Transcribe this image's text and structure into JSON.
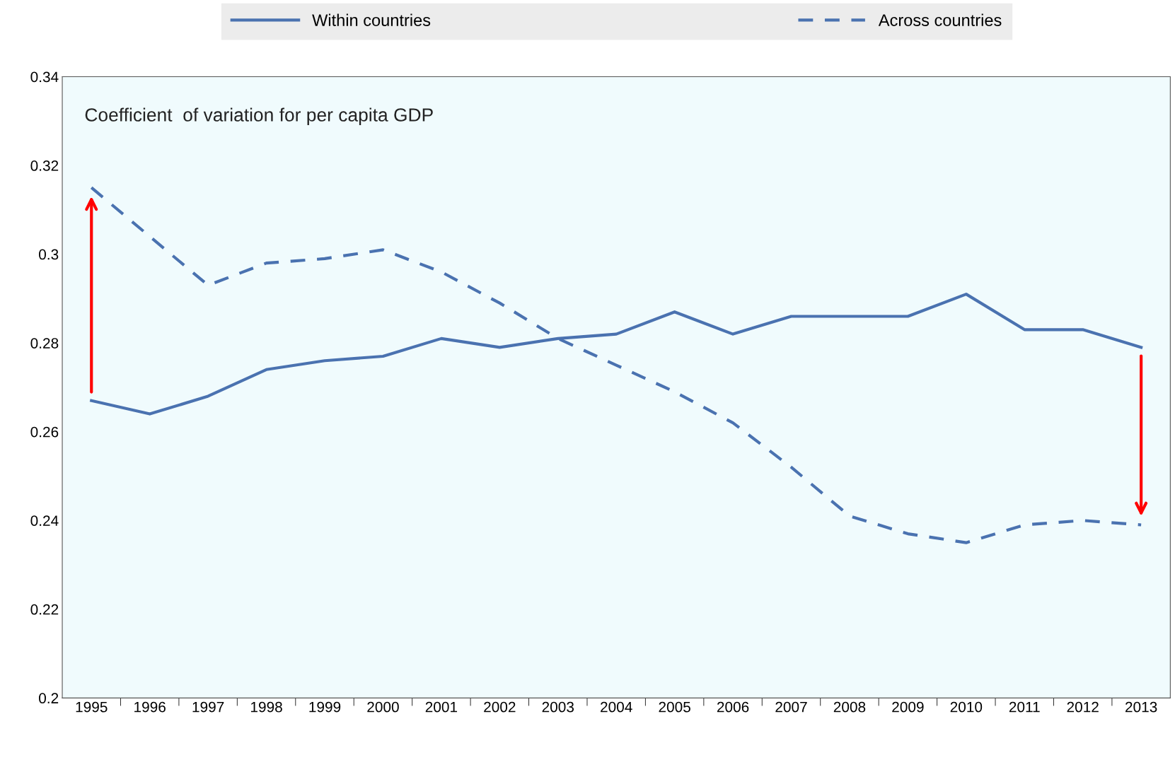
{
  "chart_data": {
    "type": "line",
    "categories": [
      "1995",
      "1996",
      "1997",
      "1998",
      "1999",
      "2000",
      "2001",
      "2002",
      "2003",
      "2004",
      "2005",
      "2006",
      "2007",
      "2008",
      "2009",
      "2010",
      "2011",
      "2012",
      "2013"
    ],
    "series": [
      {
        "name": "Within countries",
        "color": "#4a72b0",
        "line_style": "solid",
        "values": [
          0.267,
          0.264,
          0.268,
          0.274,
          0.276,
          0.277,
          0.281,
          0.279,
          0.281,
          0.282,
          0.287,
          0.282,
          0.286,
          0.286,
          0.286,
          0.291,
          0.283,
          0.283,
          0.279
        ]
      },
      {
        "name": "Across countries",
        "color": "#4a72b0",
        "line_style": "dashed",
        "values": [
          0.315,
          0.304,
          0.293,
          0.298,
          0.299,
          0.301,
          0.296,
          0.289,
          0.281,
          0.275,
          0.269,
          0.262,
          0.252,
          0.241,
          0.237,
          0.235,
          0.239,
          0.24,
          0.239
        ]
      }
    ],
    "annotations": [
      "Coefficient  of variation for per capita GDP"
    ],
    "ylim": [
      0.2,
      0.34
    ],
    "yticks": [
      0.2,
      0.22,
      0.24,
      0.26,
      0.28,
      0.3,
      0.32,
      0.34
    ],
    "grid": false,
    "legend": "top",
    "marker": "none"
  }
}
